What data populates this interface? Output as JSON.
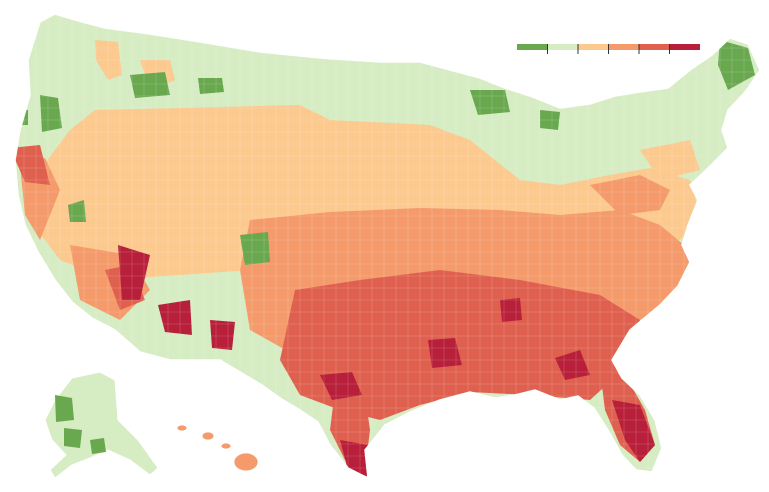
{
  "legend": {
    "colors": [
      "#6aa84f",
      "#d6ecc3",
      "#fcc98f",
      "#f49a6b",
      "#e0604f",
      "#b81f3a"
    ],
    "tick_count": 5
  },
  "palette": {
    "background": "#ffffff",
    "boundary": "#ffffff"
  },
  "regions": [
    {
      "name": "contiguous-us"
    },
    {
      "name": "alaska"
    },
    {
      "name": "hawaii"
    }
  ]
}
